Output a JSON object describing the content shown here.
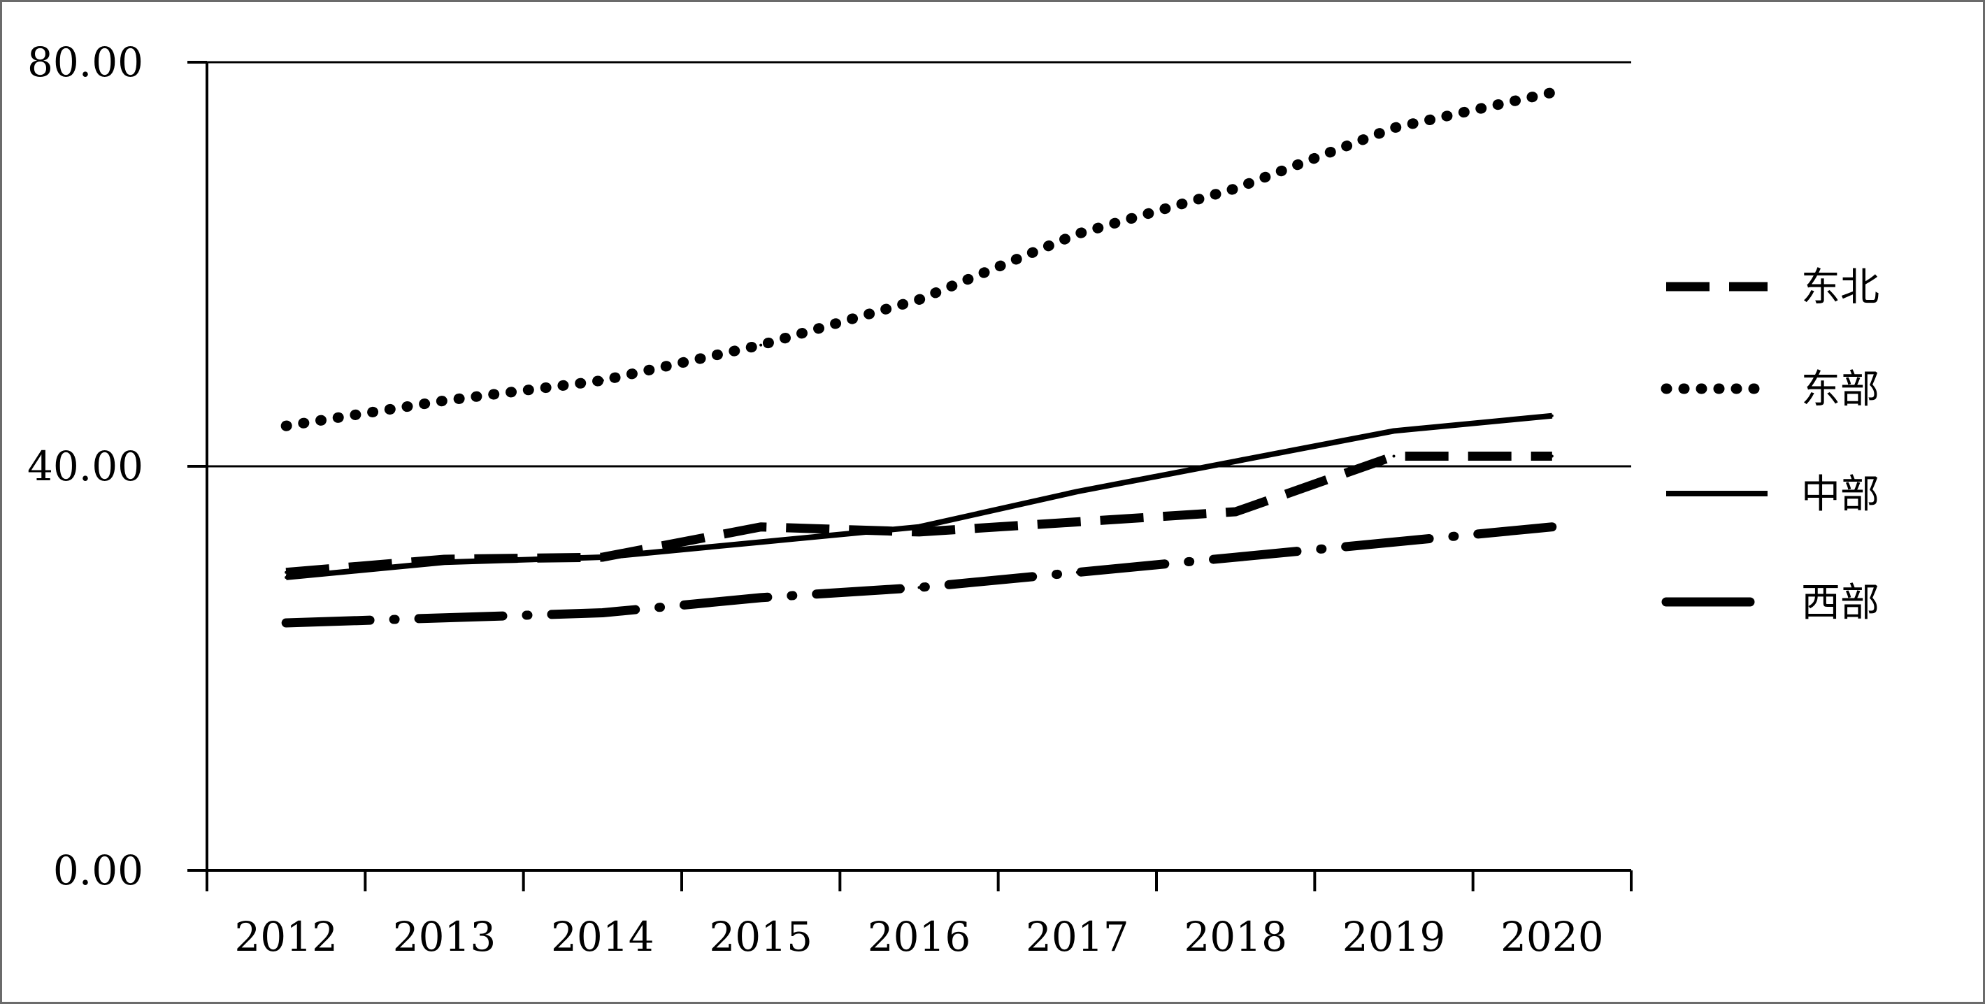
{
  "chart_data": {
    "type": "line",
    "title": "",
    "xlabel": "",
    "ylabel": "",
    "categories": [
      "2012",
      "2013",
      "2014",
      "2015",
      "2016",
      "2017",
      "2018",
      "2019",
      "2020"
    ],
    "ylim": [
      0,
      80
    ],
    "yticks": [
      "0.00",
      "40.00",
      "80.00"
    ],
    "ytick_values": [
      0,
      40,
      80
    ],
    "grid": "horizontal lines at 40 and 80",
    "legend_position": "right",
    "series": [
      {
        "name": "东北",
        "style": "dashed",
        "color": "#000000",
        "values": [
          29.5,
          30.8,
          31.0,
          34.0,
          33.5,
          34.5,
          35.5,
          41.0,
          41.0
        ]
      },
      {
        "name": "东部",
        "style": "dotted",
        "color": "#000000",
        "values": [
          44.0,
          46.5,
          48.5,
          52.0,
          56.5,
          63.0,
          67.5,
          73.5,
          77.0
        ]
      },
      {
        "name": "中部",
        "style": "solid",
        "color": "#000000",
        "values": [
          29.0,
          30.5,
          31.0,
          32.5,
          34.0,
          37.5,
          40.5,
          43.5,
          45.0
        ]
      },
      {
        "name": "西部",
        "style": "dashdot",
        "color": "#000000",
        "values": [
          24.5,
          25.0,
          25.5,
          27.0,
          28.0,
          29.5,
          31.0,
          32.5,
          34.0
        ]
      }
    ]
  }
}
